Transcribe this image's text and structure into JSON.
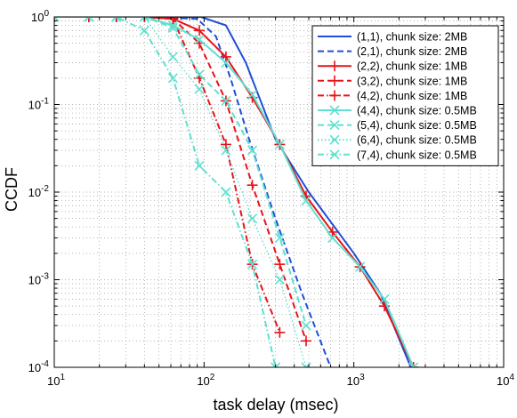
{
  "chart_data": {
    "type": "line",
    "title": "",
    "xlabel": "task delay (msec)",
    "ylabel": "CCDF",
    "xscale": "log",
    "yscale": "log",
    "xlim": [
      10,
      10000
    ],
    "ylim": [
      0.0001,
      1
    ],
    "x_tick_labels": [
      {
        "value": 10,
        "base": "10",
        "exp": "1"
      },
      {
        "value": 100,
        "base": "10",
        "exp": "2"
      },
      {
        "value": 1000,
        "base": "10",
        "exp": "3"
      },
      {
        "value": 10000,
        "base": "10",
        "exp": "4"
      }
    ],
    "y_tick_labels": [
      {
        "value": 0.0001,
        "base": "10",
        "exp": "-4"
      },
      {
        "value": 0.001,
        "base": "10",
        "exp": "-3"
      },
      {
        "value": 0.01,
        "base": "10",
        "exp": "-2"
      },
      {
        "value": 0.1,
        "base": "10",
        "exp": "-1"
      },
      {
        "value": 1,
        "base": "10",
        "exp": "0"
      }
    ],
    "grid": true,
    "legend_position": "top-right",
    "series": [
      {
        "name": "(1,1), chunk size: 2MB",
        "color": "#1f4fd6",
        "dash": "solid",
        "marker": "none",
        "x": [
          10,
          40,
          95,
          140,
          190,
          300,
          500,
          1000,
          1500,
          2400
        ],
        "y": [
          1,
          1,
          1,
          0.8,
          0.3,
          0.04,
          0.01,
          0.002,
          0.0007,
          0.0001
        ]
      },
      {
        "name": "(2,1), chunk size: 2MB",
        "color": "#1f4fd6",
        "dash": "dashed",
        "marker": "none",
        "x": [
          10,
          40,
          90,
          120,
          150,
          200,
          300,
          450,
          700
        ],
        "y": [
          1,
          1,
          0.95,
          0.6,
          0.2,
          0.04,
          0.005,
          0.0007,
          0.0001
        ]
      },
      {
        "name": "(2,2), chunk size: 1MB",
        "color": "#e8131a",
        "dash": "solid",
        "marker": "plus",
        "x": [
          10,
          17,
          26,
          40,
          62,
          93,
          140,
          210,
          320,
          480,
          720,
          1100,
          1600,
          2500
        ],
        "y": [
          1,
          1,
          1,
          1,
          0.95,
          0.7,
          0.35,
          0.12,
          0.035,
          0.009,
          0.0035,
          0.0014,
          0.0005,
          0.0001
        ]
      },
      {
        "name": "(3,2), chunk size: 1MB",
        "color": "#e8131a",
        "dash": "dashed",
        "marker": "plus",
        "x": [
          10,
          17,
          26,
          40,
          62,
          93,
          140,
          210,
          320,
          480
        ],
        "y": [
          1,
          1,
          1,
          1,
          0.95,
          0.5,
          0.11,
          0.012,
          0.0015,
          0.0002
        ]
      },
      {
        "name": "(4,2), chunk size: 1MB",
        "color": "#e8131a",
        "dash": "dashdot",
        "marker": "plus",
        "x": [
          10,
          17,
          26,
          40,
          62,
          93,
          140,
          210,
          320
        ],
        "y": [
          1,
          1,
          1,
          1,
          0.95,
          0.2,
          0.035,
          0.0015,
          0.00025
        ]
      },
      {
        "name": "(4,4), chunk size: 0.5MB",
        "color": "#5fe0cf",
        "dash": "solid",
        "marker": "x",
        "x": [
          10,
          17,
          26,
          40,
          62,
          93,
          140,
          210,
          320,
          480,
          720,
          1100,
          1600,
          2500
        ],
        "y": [
          1,
          1,
          1,
          1,
          0.8,
          0.55,
          0.3,
          0.13,
          0.035,
          0.008,
          0.003,
          0.0014,
          0.0006,
          0.0001
        ]
      },
      {
        "name": "(5,4), chunk size: 0.5MB",
        "color": "#5fe0cf",
        "dash": "dashed",
        "marker": "x",
        "x": [
          10,
          17,
          26,
          40,
          62,
          93,
          140,
          210,
          320,
          480
        ],
        "y": [
          1,
          1,
          1,
          1,
          0.75,
          0.22,
          0.11,
          0.03,
          0.003,
          0.0003
        ]
      },
      {
        "name": "(6,4), chunk size: 0.5MB",
        "color": "#5fe0cf",
        "dash": "dotted",
        "marker": "x",
        "x": [
          10,
          17,
          26,
          40,
          62,
          93,
          140,
          210,
          320,
          480
        ],
        "y": [
          1,
          1,
          1,
          1,
          0.35,
          0.15,
          0.03,
          0.005,
          0.001,
          0.0001
        ]
      },
      {
        "name": "(7,4), chunk size: 0.5MB",
        "color": "#5fe0cf",
        "dash": "dashdot",
        "marker": "x",
        "x": [
          10,
          17,
          26,
          40,
          62,
          93,
          140,
          210,
          300
        ],
        "y": [
          1,
          1,
          1,
          0.7,
          0.2,
          0.02,
          0.01,
          0.0015,
          0.0001
        ]
      }
    ]
  }
}
